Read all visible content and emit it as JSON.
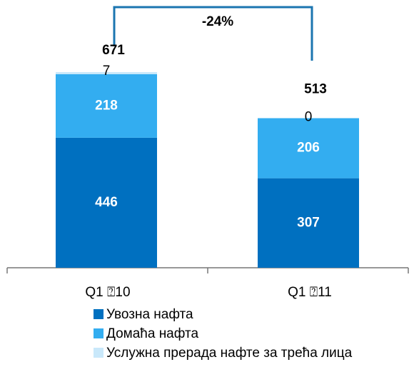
{
  "chart_data": {
    "type": "bar",
    "stacked": true,
    "categories": [
      "Q1 ⍰10",
      "Q1 ⍰11"
    ],
    "series": [
      {
        "name": "Увозна нафта",
        "color": "#0070c0",
        "values": [
          446,
          307
        ]
      },
      {
        "name": "Домаћа нафта",
        "color": "#33adf0",
        "values": [
          218,
          206
        ]
      },
      {
        "name": "Услужна прерада нафте за трећа лица",
        "color": "#c9e8fa",
        "values": [
          7,
          0
        ]
      }
    ],
    "totals": [
      671,
      513
    ],
    "annotation": "-24%",
    "bracket_color": "#1b75b0"
  }
}
